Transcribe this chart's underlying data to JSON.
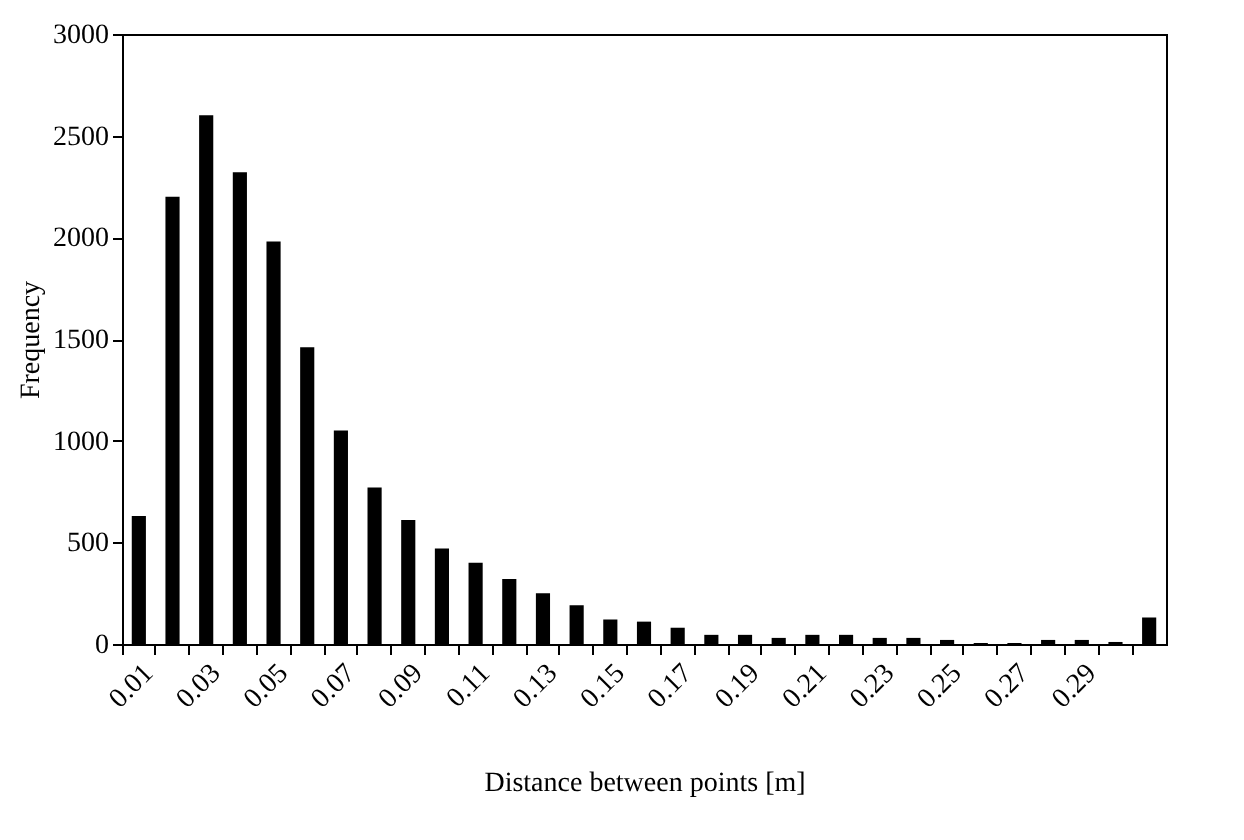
{
  "chart_data": {
    "type": "bar",
    "xlabel": "Distance between points [m]",
    "ylabel": "Frequency",
    "categories": [
      "0.01",
      null,
      "0.03",
      null,
      "0.05",
      null,
      "0.07",
      null,
      "0.09",
      null,
      "0.11",
      null,
      "0.13",
      null,
      "0.15",
      null,
      "0.17",
      null,
      "0.19",
      null,
      "0.21",
      null,
      "0.23",
      null,
      "0.25",
      null,
      "0.27",
      null,
      "0.29",
      null,
      null
    ],
    "values": [
      630,
      2200,
      2600,
      2320,
      1980,
      1460,
      1050,
      770,
      610,
      470,
      400,
      320,
      250,
      190,
      120,
      110,
      80,
      45,
      45,
      30,
      45,
      45,
      30,
      30,
      20,
      5,
      5,
      20,
      20,
      10,
      130
    ],
    "color": "#000000",
    "ylim": [
      0,
      3000
    ],
    "yticks": [
      0,
      500,
      1000,
      1500,
      2000,
      2500,
      3000
    ],
    "grid": false,
    "legend": false
  }
}
